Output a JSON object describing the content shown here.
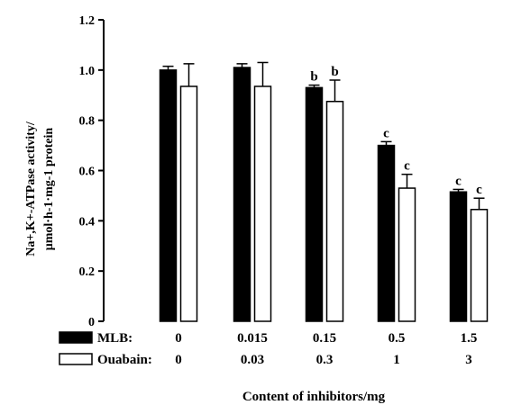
{
  "chart_data": {
    "type": "bar",
    "title": "",
    "xlabel": "Content of inhibitors/mg",
    "ylabel_line1": "Na+,K+-ATPase activity/",
    "ylabel_line2": "μmol·h-1·mg-1 protein",
    "ylim": [
      0,
      1.2
    ],
    "yticks": [
      "0",
      "0.2",
      "0.4",
      "0.6",
      "0.8",
      "1.0",
      "1.2"
    ],
    "grid": false,
    "legend_position": "bottom-left (below x-axis, as row labels)",
    "groups": 5,
    "series": [
      {
        "name": "MLB:",
        "color": "#000000",
        "doses": [
          "0",
          "0.015",
          "0.15",
          "0.5",
          "1.5"
        ],
        "values": [
          1.0,
          1.01,
          0.93,
          0.7,
          0.515
        ],
        "errors": [
          0.015,
          0.015,
          0.01,
          0.015,
          0.01
        ],
        "labels": [
          "",
          "",
          "b",
          "c",
          "c"
        ]
      },
      {
        "name": "Ouabain:",
        "color": "#ffffff",
        "doses": [
          "0",
          "0.03",
          "0.3",
          "1",
          "3"
        ],
        "values": [
          0.935,
          0.935,
          0.875,
          0.53,
          0.445
        ],
        "errors": [
          0.09,
          0.095,
          0.085,
          0.055,
          0.045
        ],
        "labels": [
          "",
          "",
          "b",
          "c",
          "c"
        ]
      }
    ]
  }
}
